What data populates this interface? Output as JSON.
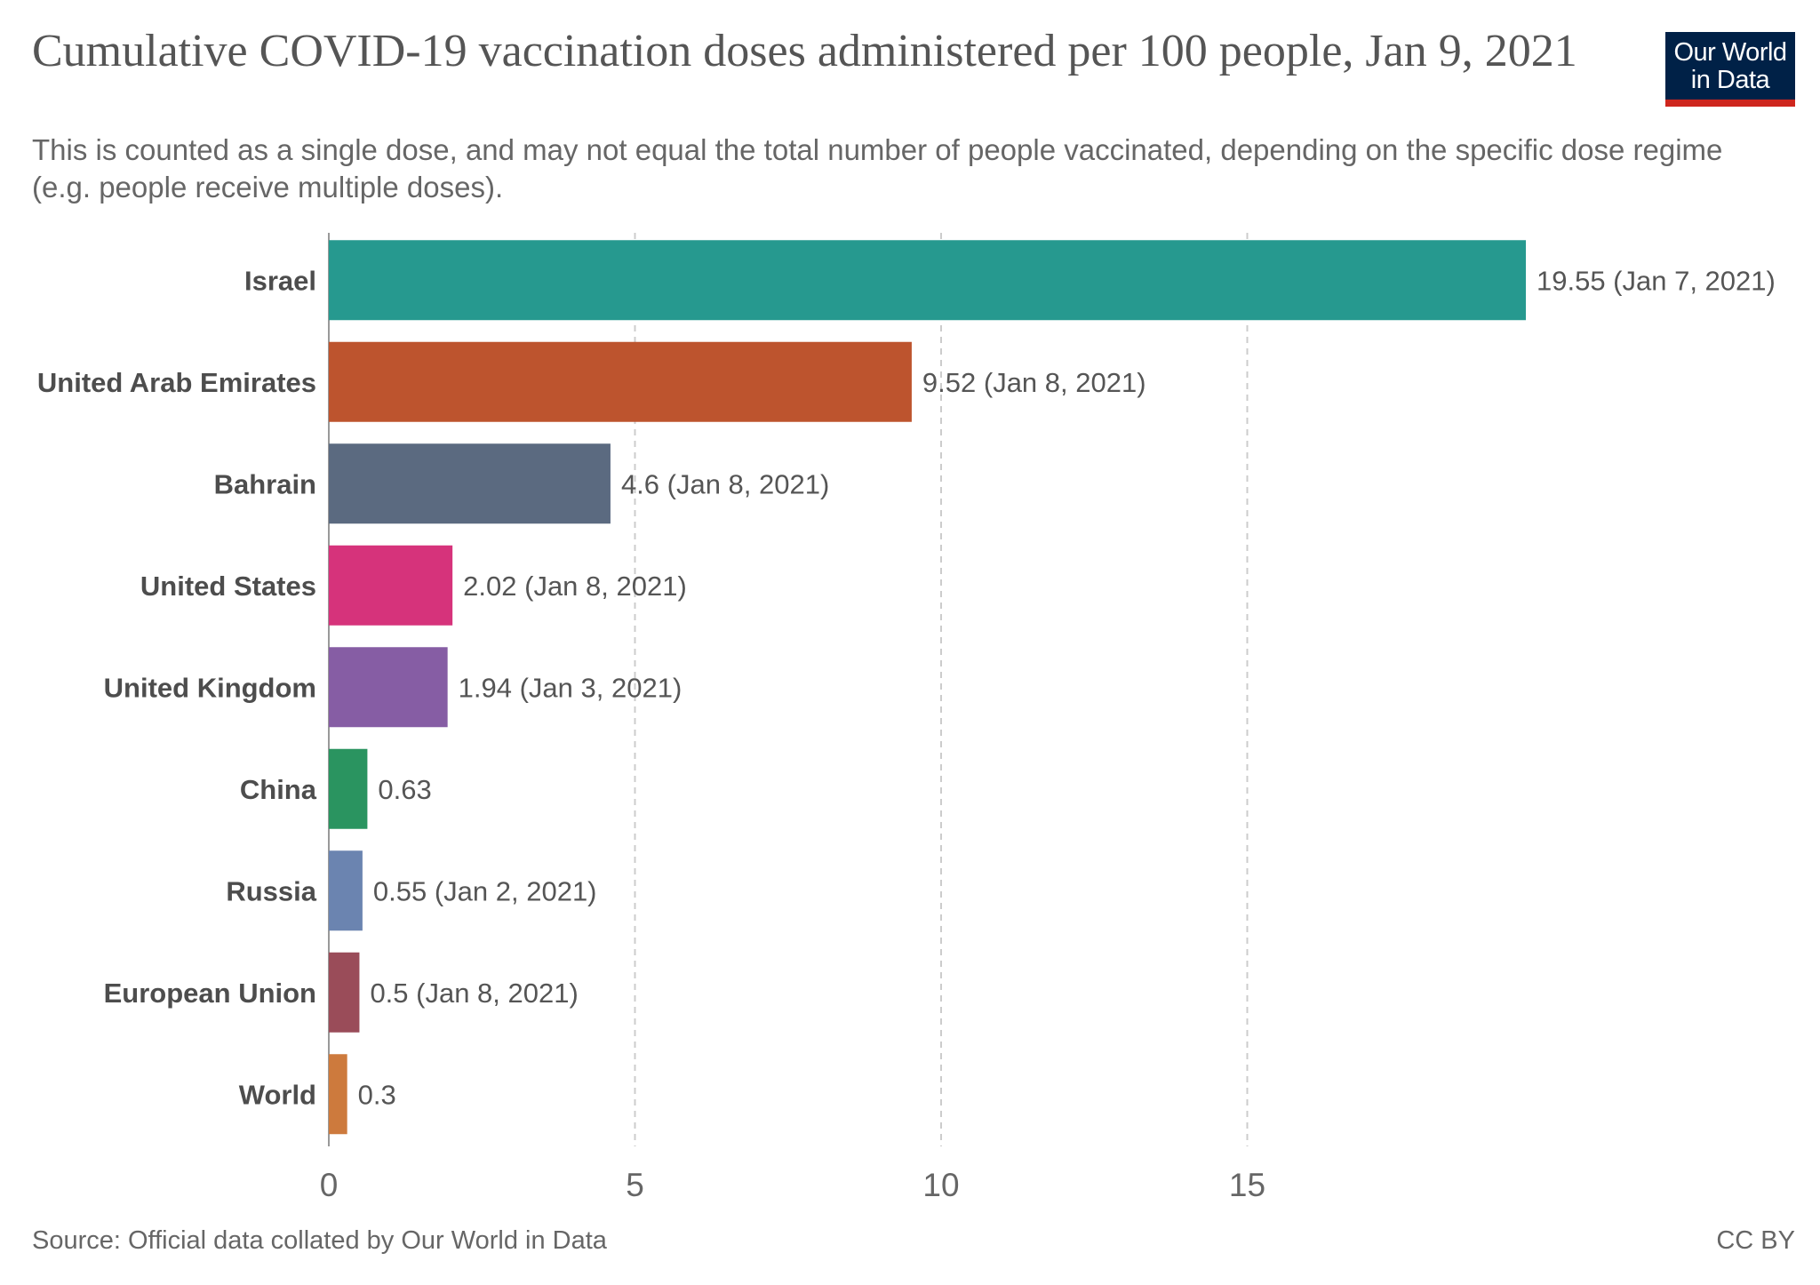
{
  "header": {
    "title": "Cumulative COVID-19 vaccination doses administered per 100 people, Jan 9, 2021",
    "subtitle": "This is counted as a single dose, and may not equal the total number of people vaccinated, depending on the specific dose regime (e.g. people receive multiple doses).",
    "logo_line1": "Our World",
    "logo_line2": "in Data"
  },
  "footer": {
    "source": "Source: Official data collated by Our World in Data",
    "license": "CC BY"
  },
  "colors": {
    "logo_bg": "#002147",
    "logo_accent": "#ce261e",
    "grid": "#cccccc",
    "axis": "#999999"
  },
  "chart_data": {
    "type": "bar",
    "orientation": "horizontal",
    "title": "Cumulative COVID-19 vaccination doses administered per 100 people, Jan 9, 2021",
    "xlabel": "",
    "ylabel": "",
    "xlim": [
      0,
      19.55
    ],
    "xticks": [
      0,
      5,
      10,
      15
    ],
    "grid": "vertical dashed",
    "categories": [
      "Israel",
      "United Arab Emirates",
      "Bahrain",
      "United States",
      "United Kingdom",
      "China",
      "Russia",
      "European Union",
      "World"
    ],
    "values": [
      19.55,
      9.52,
      4.6,
      2.02,
      1.94,
      0.63,
      0.55,
      0.5,
      0.3
    ],
    "value_labels": [
      "19.55 (Jan 7, 2021)",
      "9.52 (Jan 8, 2021)",
      "4.6 (Jan 8, 2021)",
      "2.02 (Jan 8, 2021)",
      "1.94 (Jan 3, 2021)",
      "0.63",
      "0.55 (Jan 2, 2021)",
      "0.5 (Jan 8, 2021)",
      "0.3"
    ],
    "bar_colors": [
      "#26998f",
      "#bd542e",
      "#5b6a80",
      "#d6337b",
      "#865da4",
      "#2a9460",
      "#6b84b0",
      "#9a4c59",
      "#cd7a3d"
    ]
  }
}
